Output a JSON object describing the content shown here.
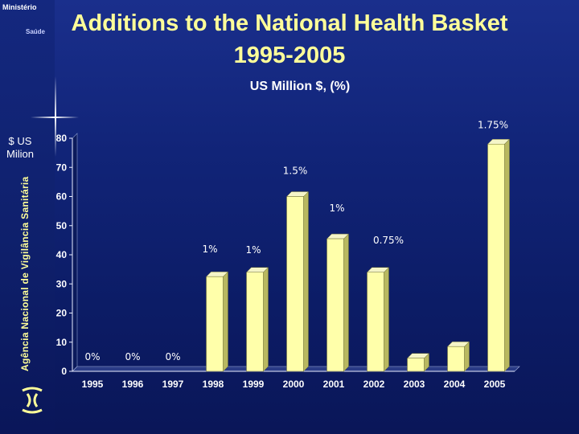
{
  "branding": {
    "ministry_line1": "Ministério",
    "ministry_line2": "Saúde",
    "agency": "Agência Nacional de Vigilância Sanitária"
  },
  "colors": {
    "title": "#ffff99",
    "bar_face": "#ffffaa",
    "bar_side": "#b8b860",
    "bar_top": "#f5f5c8",
    "background": "#112478"
  },
  "chart_data": {
    "type": "bar",
    "title": "Additions to the National Health Basket",
    "title_years": "1995-2005",
    "subtitle": "US Million $, (%)",
    "ylabel": "$ US Milion",
    "ylabel_line1": "$ US",
    "ylabel_line2": "Milion",
    "ylim": [
      0,
      80
    ],
    "ytick_labels": [
      "0",
      "10",
      "20",
      "30",
      "40",
      "50",
      "60",
      "70",
      "80"
    ],
    "categories": [
      "1995",
      "1996",
      "1997",
      "1998",
      "1999",
      "2000",
      "2001",
      "2002",
      "2003",
      "2004",
      "2005"
    ],
    "values": [
      0,
      0,
      0,
      32.5,
      34,
      60,
      45.5,
      34,
      4.5,
      8.5,
      78
    ],
    "data_labels": [
      "0%",
      "0%",
      "0%",
      "1%",
      "1%",
      "1.5%",
      "1%",
      "0.75%",
      "",
      "",
      "1.75%"
    ]
  }
}
